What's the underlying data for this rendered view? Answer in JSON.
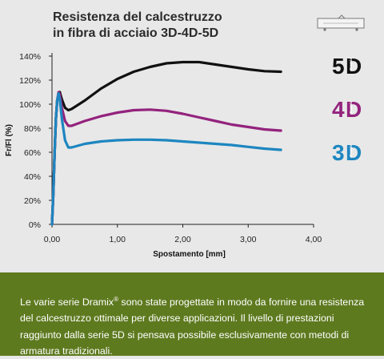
{
  "header": {
    "title_line1": "Resistenza del calcestruzzo",
    "title_line2": "in fibra di acciaio 3D-4D-5D"
  },
  "colors": {
    "5D": "#111111",
    "4D": "#93237d",
    "3D": "#1d86c0",
    "footer_bg": "#5e7a1f",
    "panel_bg": "#e8e8e8"
  },
  "badges": [
    {
      "series": "5D",
      "digit": "5",
      "letter": "D",
      "brand": "Dramix"
    },
    {
      "series": "4D",
      "digit": "4",
      "letter": "D",
      "brand": "Dramix"
    },
    {
      "series": "3D",
      "digit": "3",
      "letter": "D",
      "brand": "Dramix"
    }
  ],
  "chart_data": {
    "type": "line",
    "title": "",
    "xlabel": "Spostamento [mm]",
    "ylabel": "Fr/Fl (%)",
    "xlim": [
      0,
      4
    ],
    "ylim": [
      0,
      140
    ],
    "x_ticks": [
      "0,00",
      "1,00",
      "2,00",
      "3,00",
      "4,00"
    ],
    "y_ticks": [
      "0%",
      "20%",
      "40%",
      "60%",
      "80%",
      "100%",
      "120%",
      "140%"
    ],
    "grid": false,
    "series": [
      {
        "name": "5D",
        "color": "#111111",
        "points": [
          [
            0,
            0
          ],
          [
            0.02,
            25
          ],
          [
            0.04,
            60
          ],
          [
            0.06,
            88
          ],
          [
            0.08,
            103
          ],
          [
            0.1,
            109
          ],
          [
            0.12,
            110
          ],
          [
            0.15,
            104
          ],
          [
            0.2,
            97
          ],
          [
            0.25,
            95
          ],
          [
            0.3,
            96
          ],
          [
            0.5,
            103
          ],
          [
            0.75,
            113
          ],
          [
            1.0,
            121
          ],
          [
            1.25,
            127
          ],
          [
            1.5,
            131
          ],
          [
            1.75,
            134
          ],
          [
            2.0,
            135
          ],
          [
            2.25,
            135
          ],
          [
            2.5,
            133
          ],
          [
            2.75,
            131
          ],
          [
            3.0,
            129
          ],
          [
            3.25,
            127.5
          ],
          [
            3.5,
            127
          ]
        ]
      },
      {
        "name": "4D",
        "color": "#93237d",
        "points": [
          [
            0,
            0
          ],
          [
            0.02,
            25
          ],
          [
            0.04,
            60
          ],
          [
            0.06,
            88
          ],
          [
            0.08,
            103
          ],
          [
            0.1,
            110
          ],
          [
            0.12,
            108
          ],
          [
            0.15,
            97
          ],
          [
            0.2,
            86
          ],
          [
            0.25,
            82
          ],
          [
            0.3,
            82
          ],
          [
            0.5,
            86
          ],
          [
            0.75,
            90
          ],
          [
            1.0,
            93
          ],
          [
            1.25,
            95
          ],
          [
            1.5,
            95.5
          ],
          [
            1.75,
            94.5
          ],
          [
            2.0,
            92
          ],
          [
            2.25,
            89
          ],
          [
            2.5,
            86
          ],
          [
            2.75,
            83
          ],
          [
            3.0,
            81
          ],
          [
            3.25,
            79
          ],
          [
            3.5,
            78
          ]
        ]
      },
      {
        "name": "3D",
        "color": "#1d86c0",
        "points": [
          [
            0,
            0
          ],
          [
            0.02,
            25
          ],
          [
            0.04,
            60
          ],
          [
            0.06,
            88
          ],
          [
            0.08,
            103
          ],
          [
            0.1,
            109
          ],
          [
            0.12,
            104
          ],
          [
            0.15,
            88
          ],
          [
            0.2,
            70
          ],
          [
            0.25,
            64
          ],
          [
            0.3,
            64
          ],
          [
            0.5,
            67
          ],
          [
            0.75,
            69
          ],
          [
            1.0,
            70
          ],
          [
            1.25,
            70.5
          ],
          [
            1.5,
            70.5
          ],
          [
            1.75,
            70
          ],
          [
            2.0,
            69
          ],
          [
            2.25,
            68
          ],
          [
            2.5,
            67
          ],
          [
            2.75,
            66
          ],
          [
            3.0,
            64.5
          ],
          [
            3.25,
            63
          ],
          [
            3.5,
            62
          ]
        ]
      }
    ]
  },
  "footer": {
    "text_before_reg": "Le varie serie Dramix",
    "reg_mark": "®",
    "text_after_reg": " sono state progettate in modo da fornire una resistenza del calcestruzzo ottimale per diverse applicazioni. Il livello di prestazioni raggiunto dalla serie 5D si pensava possibile esclusivamente con metodi di armatura tradizionali."
  }
}
